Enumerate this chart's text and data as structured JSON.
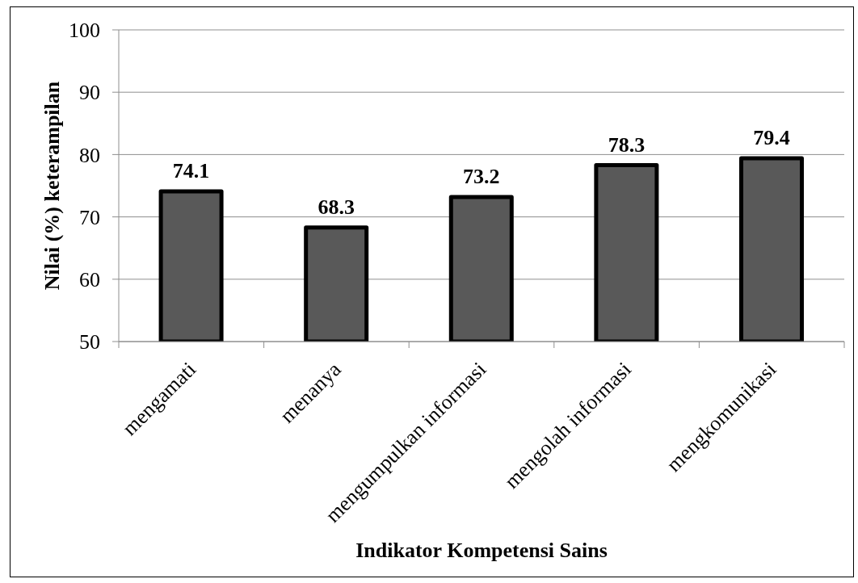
{
  "chart_data": {
    "type": "bar",
    "xlabel": "Indikator Kompetensi Sains",
    "ylabel": "Nilai (%) keterampilan",
    "categories": [
      "mengamati",
      "menanya",
      "mengumpulkan informasi",
      "mengolah informasi",
      "mengkomunikasi"
    ],
    "values": [
      74.1,
      68.3,
      73.2,
      78.3,
      79.4
    ],
    "color": "#595959",
    "ylim": [
      50,
      100
    ],
    "yticks": [
      50,
      60,
      70,
      80,
      90,
      100
    ],
    "grid": "y",
    "data_labels": true
  }
}
